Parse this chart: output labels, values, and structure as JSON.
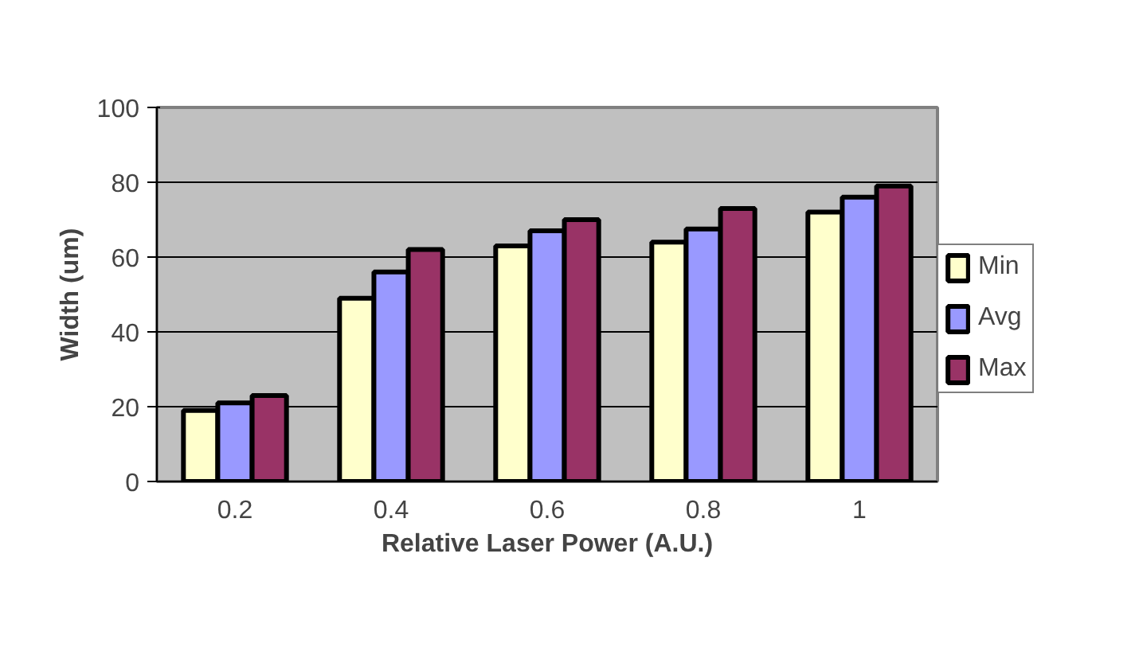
{
  "chart_data": {
    "type": "bar",
    "xlabel": "Relative Laser Power (A.U.)",
    "ylabel": "Width (um)",
    "categories": [
      "0.2",
      "0.4",
      "0.6",
      "0.8",
      "1"
    ],
    "series": [
      {
        "name": "Min",
        "color": "#ffffcc",
        "values": [
          19,
          49,
          63,
          64,
          72
        ]
      },
      {
        "name": "Avg",
        "color": "#9999ff",
        "values": [
          21,
          56,
          67,
          67.5,
          76
        ]
      },
      {
        "name": "Max",
        "color": "#993366",
        "values": [
          23,
          62,
          70,
          73,
          79
        ]
      }
    ],
    "ylim": [
      0,
      100
    ],
    "yticks": [
      0,
      20,
      40,
      60,
      80,
      100
    ],
    "grid": "y",
    "legend": "right"
  }
}
